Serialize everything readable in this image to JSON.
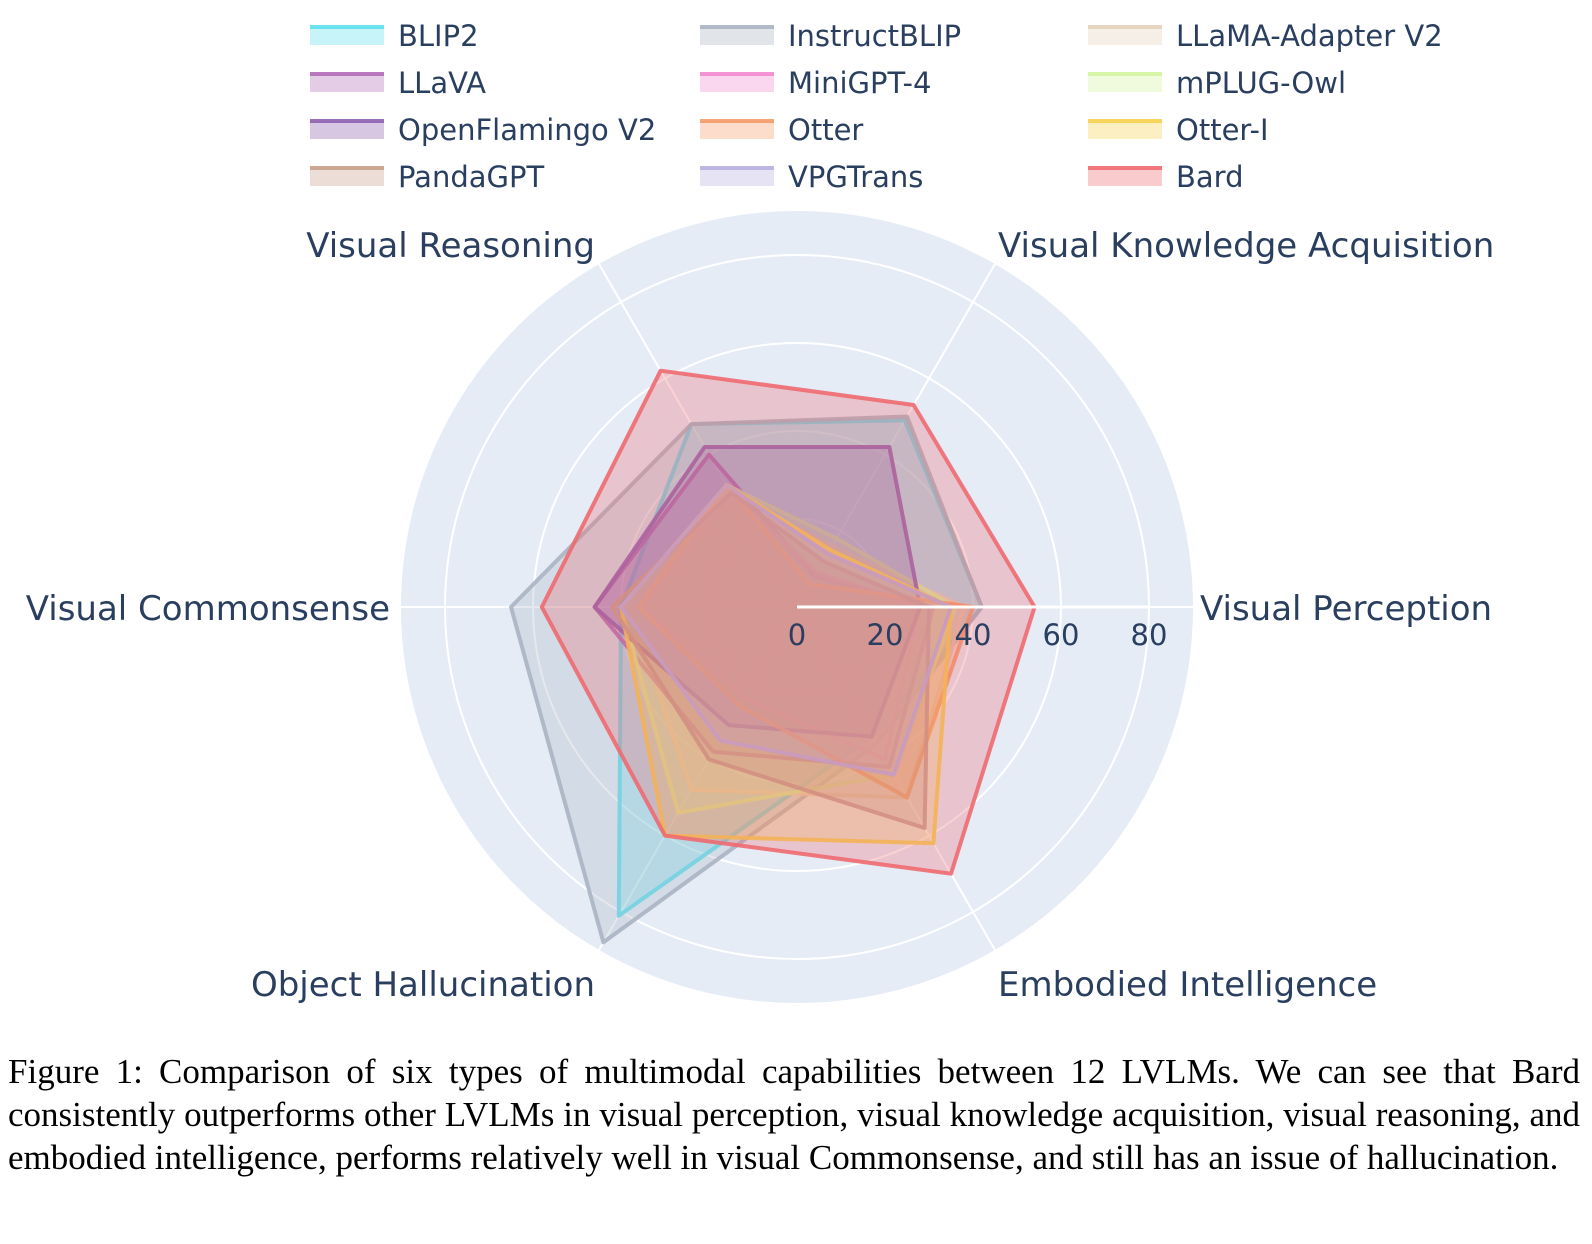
{
  "chart_data": {
    "type": "radar",
    "axes": [
      "Visual Perception",
      "Visual Knowledge Acquisition",
      "Visual Reasoning",
      "Visual Commonsense",
      "Object Hallucination",
      "Embodied Intelligence"
    ],
    "radial_ticks": [
      "0",
      "20",
      "40",
      "60",
      "80"
    ],
    "radial_range": [
      0,
      90
    ],
    "legend_placement": "top",
    "series": [
      {
        "name": "BLIP2",
        "color": "#5ee0ee",
        "values": [
          42,
          49,
          48,
          40,
          81,
          34
        ]
      },
      {
        "name": "InstructBLIP",
        "color": "#aab4c2",
        "values": [
          42,
          50,
          48,
          65,
          88,
          36
        ]
      },
      {
        "name": "LLaMA-Adapter V2",
        "color": "#e6d2bc",
        "values": [
          38,
          16,
          30,
          38,
          48,
          50
        ]
      },
      {
        "name": "LLaVA",
        "color": "#b36ab8",
        "values": [
          31,
          8,
          40,
          46,
          38,
          42
        ]
      },
      {
        "name": "MiniGPT-4",
        "color": "#f28ad0",
        "values": [
          28,
          9,
          30,
          35,
          24,
          40
        ]
      },
      {
        "name": "mPLUG-Owl",
        "color": "#d4f4a0",
        "values": [
          36,
          18,
          32,
          40,
          54,
          44
        ]
      },
      {
        "name": "OpenFlamingo V2",
        "color": "#8e5fb0",
        "values": [
          28,
          42,
          42,
          46,
          31,
          34
        ]
      },
      {
        "name": "Otter",
        "color": "#f59a6a",
        "values": [
          40,
          6,
          32,
          36,
          26,
          50
        ]
      },
      {
        "name": "Otter-I",
        "color": "#f6d24e",
        "values": [
          35,
          15,
          32,
          40,
          60,
          62
        ]
      },
      {
        "name": "PandaGPT",
        "color": "#c8a08a",
        "values": [
          30,
          12,
          30,
          42,
          40,
          58
        ]
      },
      {
        "name": "VPGTrans",
        "color": "#b8b0e0",
        "values": [
          35,
          14,
          32,
          40,
          35,
          44
        ]
      },
      {
        "name": "Bard",
        "color": "#ee6a70",
        "values": [
          54,
          53,
          62,
          58,
          60,
          70
        ]
      }
    ]
  },
  "caption": "Figure 1: Comparison of six types of multimodal capabilities between 12 LVLMs. We can see that Bard consistently outperforms other LVLMs in visual perception, visual knowledge acquisition, visual reasoning, and embodied intelligence, performs relatively well in visual Commonsense, and still has an issue of hallucination."
}
